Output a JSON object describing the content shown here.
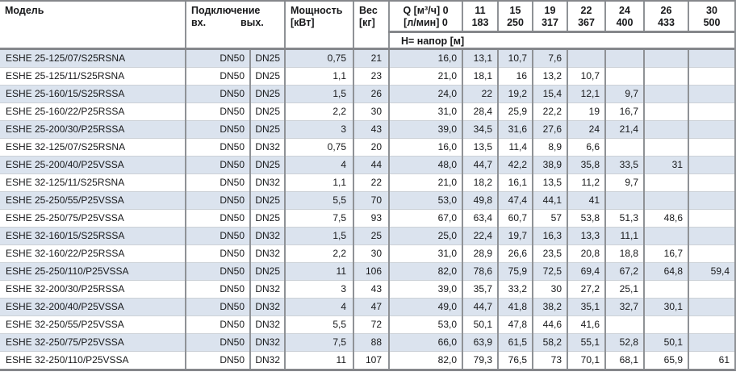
{
  "colors": {
    "grid_line": "#8f9296",
    "grid_line_thick": "#85878b",
    "row_separator": "#ccd1d7",
    "row_alt_background": "#dbe3ee",
    "text": "#17181a"
  },
  "table": {
    "columns": {
      "model": "Модель",
      "connection": "Подключение",
      "inlet": "вх.",
      "outlet": "вых.",
      "power_line1": "Мощность",
      "power_line2": "[кВт]",
      "weight_line1": "Вес",
      "weight_line2": "[кг]",
      "q_label_line1": "Q [м³/ч] 0",
      "q_label_line2": "[л/мин] 0",
      "head_row_label": "Н= напор [м]"
    },
    "q_columns": [
      {
        "m3h": "11",
        "lmin": "183"
      },
      {
        "m3h": "15",
        "lmin": "250"
      },
      {
        "m3h": "19",
        "lmin": "317"
      },
      {
        "m3h": "22",
        "lmin": "367"
      },
      {
        "m3h": "24",
        "lmin": "400"
      },
      {
        "m3h": "26",
        "lmin": "433"
      },
      {
        "m3h": "30",
        "lmin": "500"
      }
    ],
    "rows": [
      {
        "model": "ESHE 25-125/07/S25RSNA",
        "inlet": "DN50",
        "outlet": "DN25",
        "power": "0,75",
        "weight": "21",
        "heads": [
          "16,0",
          "13,1",
          "10,7",
          "7,6",
          "",
          "",
          "",
          ""
        ]
      },
      {
        "model": "ESHE 25-125/11/S25RSNA",
        "inlet": "DN50",
        "outlet": "DN25",
        "power": "1,1",
        "weight": "23",
        "heads": [
          "21,0",
          "18,1",
          "16",
          "13,2",
          "10,7",
          "",
          "",
          ""
        ]
      },
      {
        "model": "ESHE 25-160/15/S25RSSA",
        "inlet": "DN50",
        "outlet": "DN25",
        "power": "1,5",
        "weight": "26",
        "heads": [
          "24,0",
          "22",
          "19,2",
          "15,4",
          "12,1",
          "9,7",
          "",
          ""
        ]
      },
      {
        "model": "ESHE 25-160/22/P25RSSA",
        "inlet": "DN50",
        "outlet": "DN25",
        "power": "2,2",
        "weight": "30",
        "heads": [
          "31,0",
          "28,4",
          "25,9",
          "22,2",
          "19",
          "16,7",
          "",
          ""
        ]
      },
      {
        "model": "ESHE 25-200/30/P25RSSA",
        "inlet": "DN50",
        "outlet": "DN25",
        "power": "3",
        "weight": "43",
        "heads": [
          "39,0",
          "34,5",
          "31,6",
          "27,6",
          "24",
          "21,4",
          "",
          ""
        ]
      },
      {
        "model": "ESHE 32-125/07/S25RSNA",
        "inlet": "DN50",
        "outlet": "DN32",
        "power": "0,75",
        "weight": "20",
        "heads": [
          "16,0",
          "13,5",
          "11,4",
          "8,9",
          "6,6",
          "",
          "",
          ""
        ]
      },
      {
        "model": "ESHE 25-200/40/P25VSSA",
        "inlet": "DN50",
        "outlet": "DN25",
        "power": "4",
        "weight": "44",
        "heads": [
          "48,0",
          "44,7",
          "42,2",
          "38,9",
          "35,8",
          "33,5",
          "31",
          ""
        ]
      },
      {
        "model": "ESHE 32-125/11/S25RSNA",
        "inlet": "DN50",
        "outlet": "DN32",
        "power": "1,1",
        "weight": "22",
        "heads": [
          "21,0",
          "18,2",
          "16,1",
          "13,5",
          "11,2",
          "9,7",
          "",
          ""
        ]
      },
      {
        "model": "ESHE 25-250/55/P25VSSA",
        "inlet": "DN50",
        "outlet": "DN25",
        "power": "5,5",
        "weight": "70",
        "heads": [
          "53,0",
          "49,8",
          "47,4",
          "44,1",
          "41",
          "",
          "",
          ""
        ]
      },
      {
        "model": "ESHE 25-250/75/P25VSSA",
        "inlet": "DN50",
        "outlet": "DN25",
        "power": "7,5",
        "weight": "93",
        "heads": [
          "67,0",
          "63,4",
          "60,7",
          "57",
          "53,8",
          "51,3",
          "48,6",
          ""
        ]
      },
      {
        "model": "ESHE 32-160/15/S25RSSA",
        "inlet": "DN50",
        "outlet": "DN32",
        "power": "1,5",
        "weight": "25",
        "heads": [
          "25,0",
          "22,4",
          "19,7",
          "16,3",
          "13,3",
          "11,1",
          "",
          ""
        ]
      },
      {
        "model": "ESHE 32-160/22/P25RSSA",
        "inlet": "DN50",
        "outlet": "DN32",
        "power": "2,2",
        "weight": "30",
        "heads": [
          "31,0",
          "28,9",
          "26,6",
          "23,5",
          "20,8",
          "18,8",
          "16,7",
          ""
        ]
      },
      {
        "model": "ESHE 25-250/110/P25VSSA",
        "inlet": "DN50",
        "outlet": "DN25",
        "power": "11",
        "weight": "106",
        "heads": [
          "82,0",
          "78,6",
          "75,9",
          "72,5",
          "69,4",
          "67,2",
          "64,8",
          "59,4"
        ]
      },
      {
        "model": "ESHE 32-200/30/P25RSSA",
        "inlet": "DN50",
        "outlet": "DN32",
        "power": "3",
        "weight": "43",
        "heads": [
          "39,0",
          "35,7",
          "33,2",
          "30",
          "27,2",
          "25,1",
          "",
          ""
        ]
      },
      {
        "model": "ESHE 32-200/40/P25VSSA",
        "inlet": "DN50",
        "outlet": "DN32",
        "power": "4",
        "weight": "47",
        "heads": [
          "49,0",
          "44,7",
          "41,8",
          "38,2",
          "35,1",
          "32,7",
          "30,1",
          ""
        ]
      },
      {
        "model": "ESHE 32-250/55/P25VSSA",
        "inlet": "DN50",
        "outlet": "DN32",
        "power": "5,5",
        "weight": "72",
        "heads": [
          "53,0",
          "50,1",
          "47,8",
          "44,6",
          "41,6",
          "",
          "",
          ""
        ]
      },
      {
        "model": "ESHE 32-250/75/P25VSSA",
        "inlet": "DN50",
        "outlet": "DN32",
        "power": "7,5",
        "weight": "88",
        "heads": [
          "66,0",
          "63,9",
          "61,5",
          "58,2",
          "55,1",
          "52,8",
          "50,1",
          ""
        ]
      },
      {
        "model": "ESHE 32-250/110/P25VSSA",
        "inlet": "DN50",
        "outlet": "DN32",
        "power": "11",
        "weight": "107",
        "heads": [
          "82,0",
          "79,3",
          "76,5",
          "73",
          "70,1",
          "68,1",
          "65,9",
          "61"
        ]
      }
    ]
  }
}
